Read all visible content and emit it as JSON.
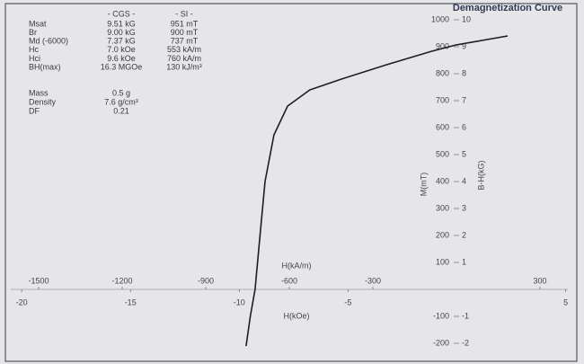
{
  "properties": {
    "headers": [
      "- CGS -",
      "- SI -"
    ],
    "rows": [
      [
        "Msat",
        "9.51 kG",
        "951 mT"
      ],
      [
        "Br",
        "9.00 kG",
        "900 mT"
      ],
      [
        "Md (-6000)",
        "7.37 kG",
        "737 mT"
      ],
      [
        "Hc",
        "7.0 kOe",
        "553 kA/m"
      ],
      [
        "Hci",
        "9.6 kOe",
        "760 kA/m"
      ],
      [
        "BH(max)",
        "16.3 MGOe",
        "130 kJ/m³"
      ]
    ],
    "sample": [
      [
        "Mass",
        "0.5 g"
      ],
      [
        "Density",
        "7.6 g/cm³"
      ],
      [
        "DF",
        "0.21"
      ]
    ]
  },
  "chart_data": {
    "type": "line",
    "title": "Demagnetization Curve",
    "x_label": "H(kA/m)",
    "x2_label": "H(kOe)",
    "y_label": "M(mT)",
    "y2_label": "B-H(kG)",
    "x": [
      -755,
      -740,
      -723,
      -705,
      -687,
      -655,
      -606,
      -526,
      -413,
      -252,
      -90,
      0,
      184
    ],
    "values": [
      -210,
      -100,
      0,
      200,
      400,
      573,
      680,
      740,
      780,
      833,
      883,
      907,
      940
    ],
    "color": "#1e1e22",
    "xlim": [
      -1600,
      400
    ],
    "xticks": [
      -1500,
      -1200,
      -900,
      -600,
      -300,
      300
    ],
    "x2lim": [
      -20.5,
      5.1
    ],
    "x2ticks": [
      -20,
      -15,
      -10,
      -5,
      5
    ],
    "ylim": [
      -250,
      1050
    ],
    "yticks": [
      -200,
      -100,
      100,
      200,
      300,
      400,
      500,
      600,
      700,
      800,
      900,
      1000
    ],
    "y2lim": [
      -2.5,
      10.5
    ],
    "y2ticks": [
      -2,
      -1,
      1,
      2,
      3,
      4,
      5,
      6,
      7,
      8,
      9,
      10
    ],
    "grid": false
  }
}
